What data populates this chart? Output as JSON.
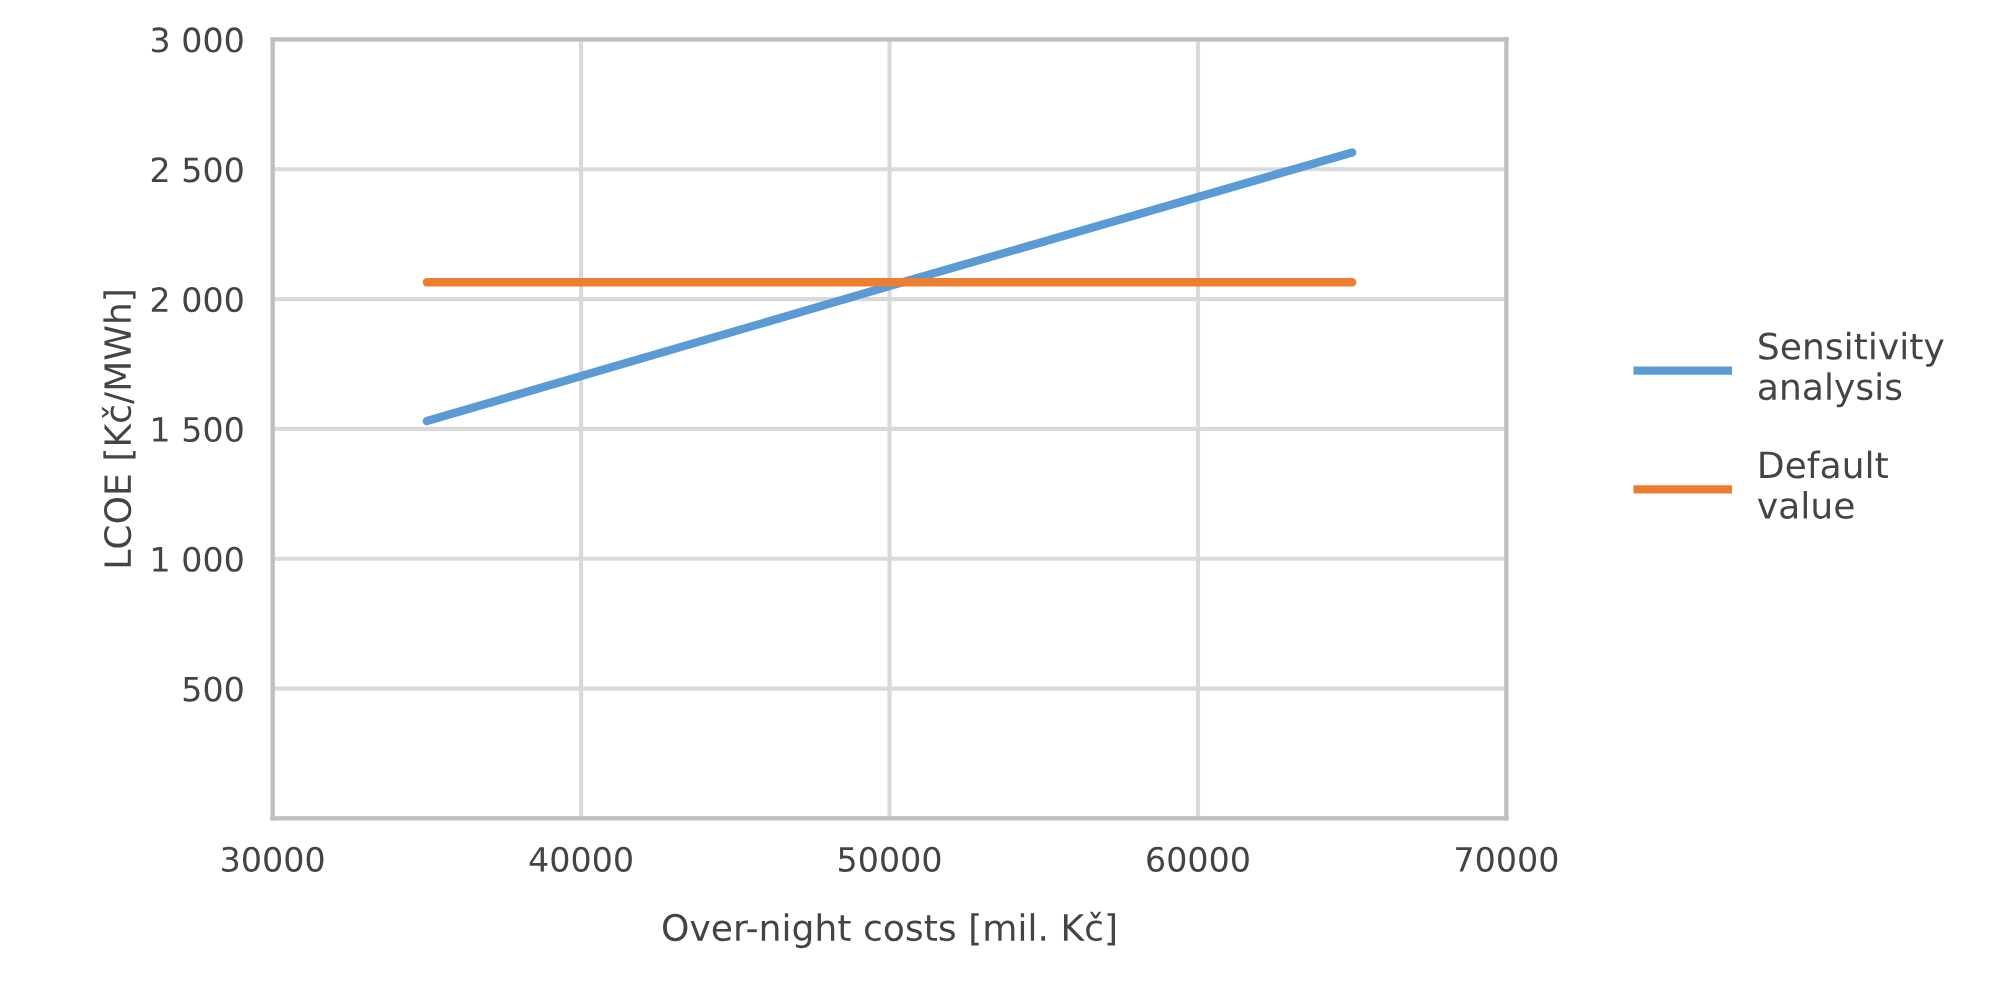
{
  "chart_data": {
    "type": "line",
    "xlabel": "Over-night costs [mil. Kč]",
    "ylabel": "LCOE [Kč/MWh]",
    "x": [
      35000,
      50000,
      65000
    ],
    "series": [
      {
        "name": "Sensitivity analysis",
        "color": "#5b9bd5",
        "values": [
          1530,
          2050,
          2565
        ]
      },
      {
        "name": "Default value",
        "color": "#ed7d31",
        "values": [
          2065,
          2065,
          2065
        ]
      }
    ],
    "xlim": [
      30000,
      70000
    ],
    "xticks": [
      30000,
      40000,
      50000,
      60000,
      70000
    ],
    "ylim": [
      0,
      3000
    ],
    "yticks": [
      {
        "value": 0,
        "label": null
      },
      500,
      {
        "value": 1000,
        "label": "1 000"
      },
      {
        "value": 1500,
        "label": "1 500"
      },
      {
        "value": 2000,
        "label": "2 000"
      },
      {
        "value": 2500,
        "label": "2 500"
      },
      {
        "value": 3000,
        "label": "3 000"
      }
    ],
    "grid": true,
    "legend": "right",
    "marker": "none",
    "line_style": "solid"
  }
}
